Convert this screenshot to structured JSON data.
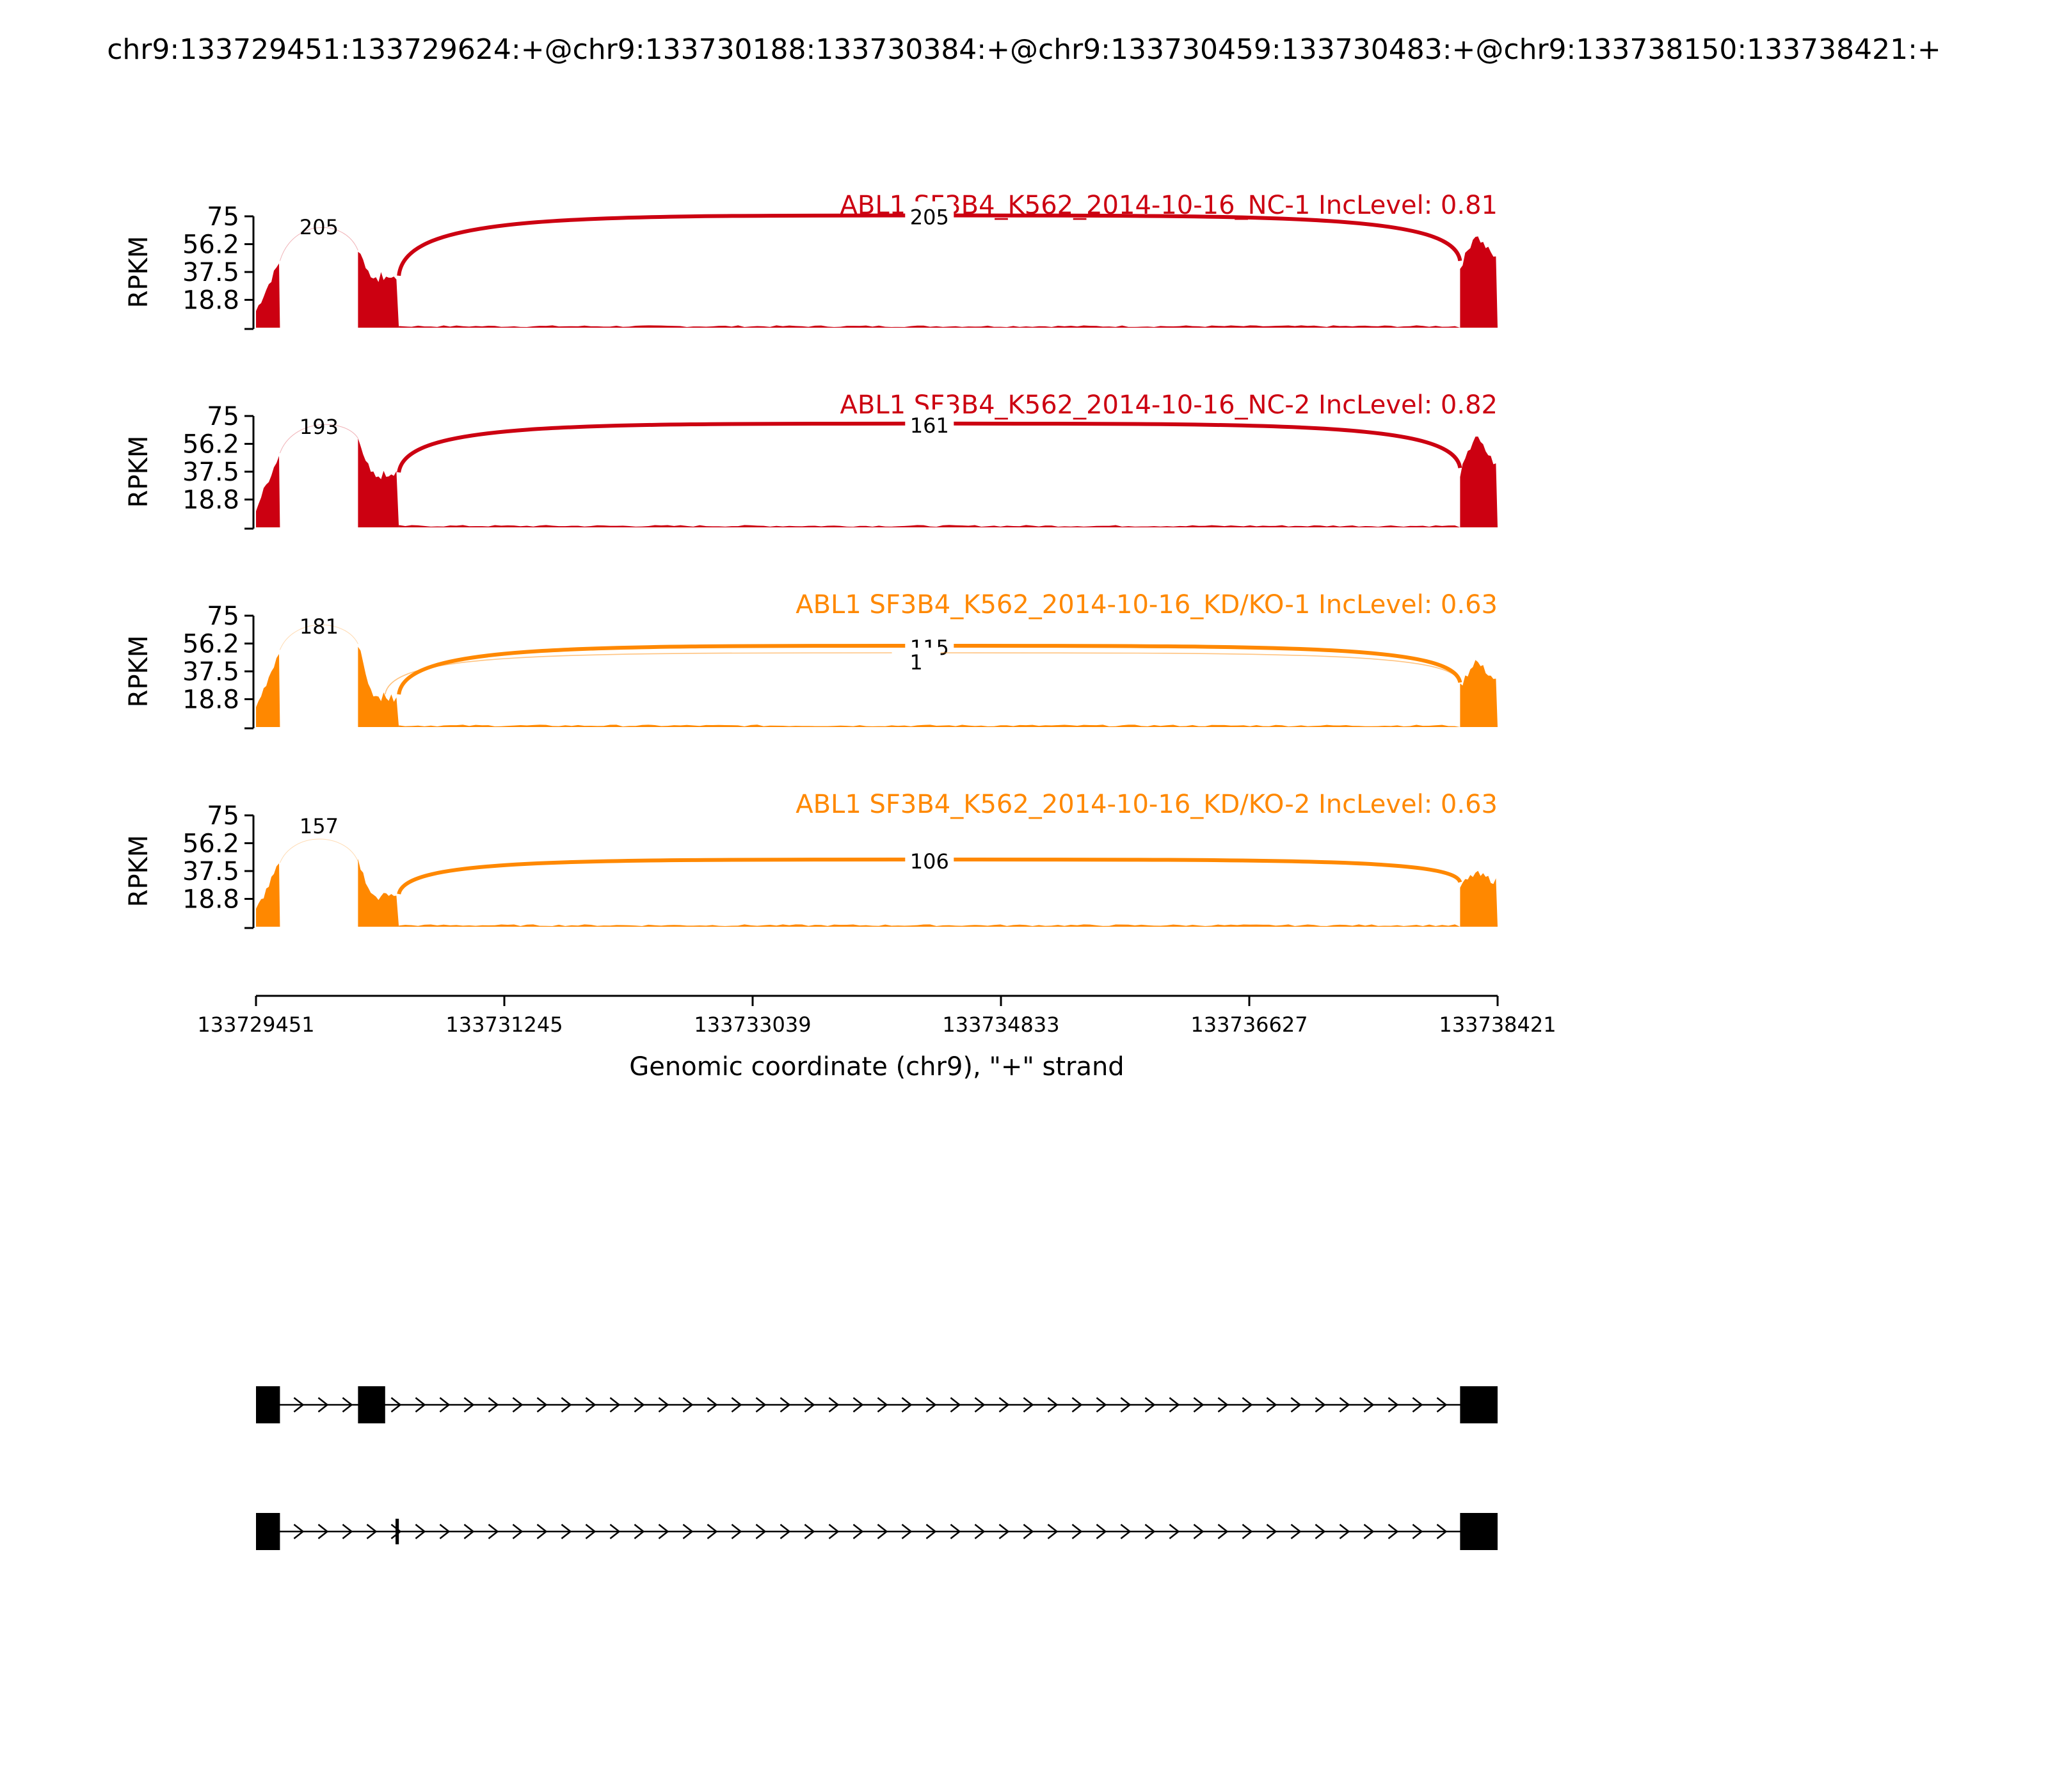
{
  "title": "chr9:133729451:133729624:+@chr9:133730188:133730384:+@chr9:133730459:133730483:+@chr9:133738150:133738421:+",
  "chart_data": {
    "type": "area",
    "subtype": "sashimi",
    "xlim": [
      133729451,
      133738421
    ],
    "ylim": [
      0,
      75
    ],
    "ylabel": "RPKM",
    "yticks": [
      "75",
      "56.2",
      "37.5",
      "18.8"
    ],
    "xticks": [
      133729451,
      133731245,
      133733039,
      133734833,
      133736627,
      133738421
    ],
    "xticklabels": [
      "133729451",
      "133731245",
      "133733039",
      "133734833",
      "133736627",
      "133738421"
    ],
    "xlabel": "Genomic coordinate (chr9), \"+\" strand",
    "exons": [
      {
        "start": 133729451,
        "end": 133729624
      },
      {
        "start": 133730188,
        "end": 133730384
      },
      {
        "start": 133730459,
        "end": 133730483
      },
      {
        "start": 133738150,
        "end": 133738421
      }
    ],
    "tracks": [
      {
        "label": "ABL1 SF3B4_K562_2014-10-16_NC-1 IncLevel: 0.81",
        "color": "#cc0011",
        "exon1_peak": 45,
        "exon2_peak": 52,
        "exon2_low": 33,
        "exon4_peak": 63,
        "exon4_tail": 45,
        "junctions": [
          {
            "from": 133729624,
            "to": 133730188,
            "count": "205",
            "side": "top",
            "height": 70,
            "weight": 3
          },
          {
            "from": 133730483,
            "to": 133738150,
            "count": "205",
            "side": "top",
            "height": 72,
            "weight": 3
          }
        ]
      },
      {
        "label": "ABL1 SF3B4_K562_2014-10-16_NC-2 IncLevel: 0.82",
        "color": "#cc0011",
        "exon1_peak": 50,
        "exon2_peak": 60,
        "exon2_low": 35,
        "exon4_peak": 62,
        "exon4_tail": 40,
        "junctions": [
          {
            "from": 133729624,
            "to": 133730188,
            "count": "193",
            "side": "top",
            "height": 70,
            "weight": 3
          },
          {
            "from": 133730483,
            "to": 133738150,
            "count": "161",
            "side": "top",
            "height": 66,
            "weight": 3
          }
        ]
      },
      {
        "label": "ABL1 SF3B4_K562_2014-10-16_KD/KO-1 IncLevel: 0.63",
        "color": "#ff8800",
        "exon1_peak": 52,
        "exon2_peak": 56,
        "exon2_low": 20,
        "exon4_peak": 45,
        "exon4_tail": 30,
        "junctions": [
          {
            "from": 133729624,
            "to": 133730188,
            "count": "181",
            "side": "top",
            "height": 70,
            "weight": 3
          },
          {
            "from": 133730483,
            "to": 133738150,
            "count": "115",
            "side": "top",
            "height": 50,
            "weight": 3
          },
          {
            "from": 133730384,
            "to": 133738150,
            "count": "1",
            "side": "top",
            "height": 45,
            "weight": 0.8
          }
        ]
      },
      {
        "label": "ABL1 SF3B4_K562_2014-10-16_KD/KO-2 IncLevel: 0.63",
        "color": "#ff8800",
        "exon1_peak": 43,
        "exon2_peak": 44,
        "exon2_low": 20,
        "exon4_peak": 36,
        "exon4_tail": 30,
        "junctions": [
          {
            "from": 133729624,
            "to": 133730188,
            "count": "157",
            "side": "top",
            "height": 60,
            "weight": 3
          },
          {
            "from": 133730483,
            "to": 133738150,
            "count": "106",
            "side": "top",
            "height": 40,
            "weight": 3
          }
        ]
      }
    ],
    "isoforms": [
      {
        "exons": [
          [
            133729451,
            133729624
          ],
          [
            133730188,
            133730384
          ],
          [
            133738150,
            133738421
          ]
        ]
      },
      {
        "exons": [
          [
            133729451,
            133729624
          ],
          [
            133730459,
            133730483
          ],
          [
            133738150,
            133738421
          ]
        ]
      }
    ]
  }
}
